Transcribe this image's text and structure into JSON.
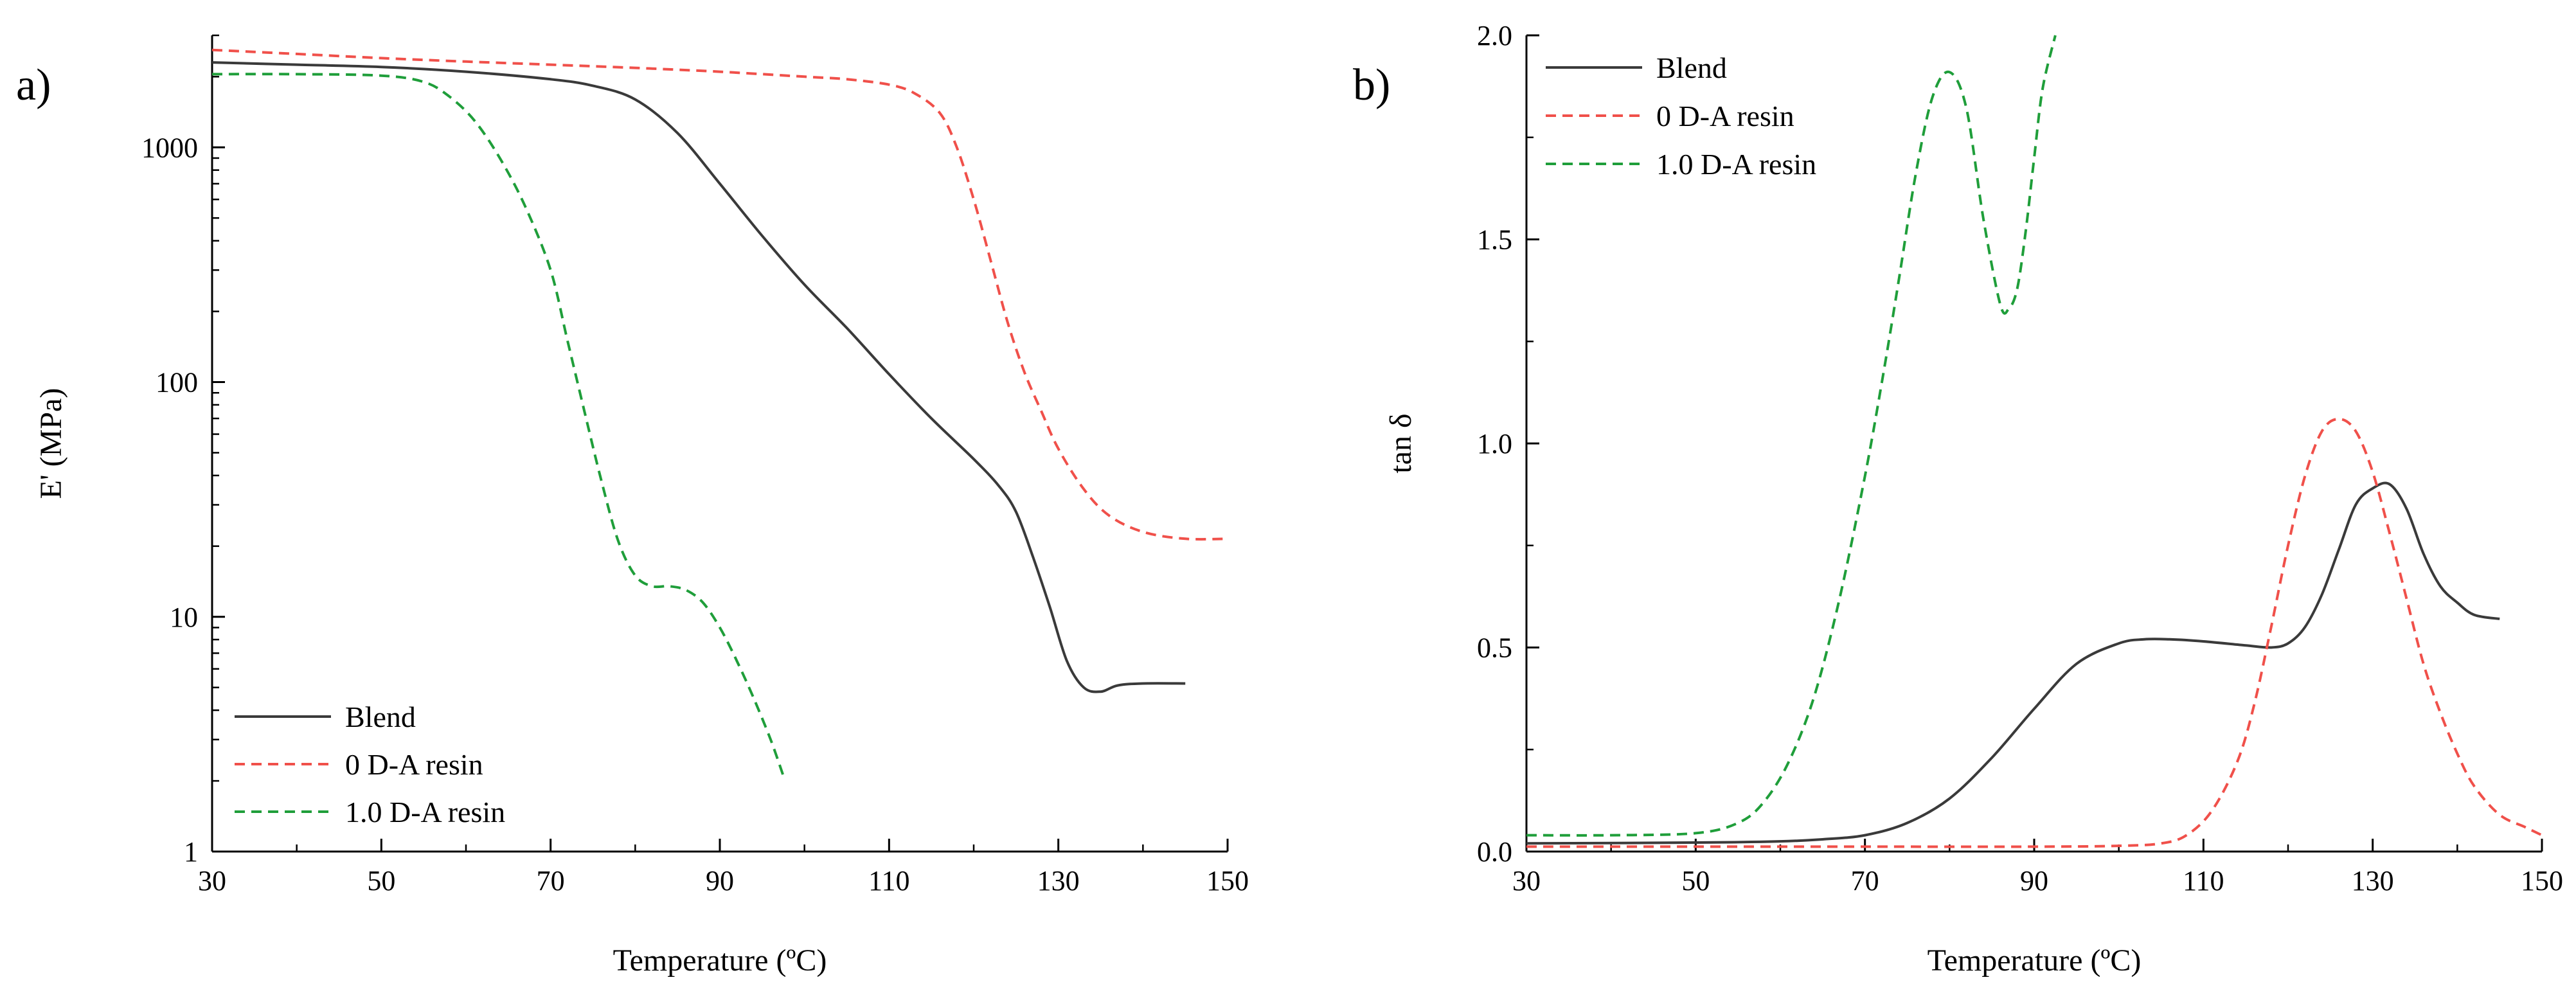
{
  "figure": {
    "colors": {
      "blend": "#3a3a3a",
      "resin0": "#f0504a",
      "resin1": "#1f9e3a"
    }
  },
  "chart_data": [
    {
      "type": "line",
      "panel_label": "a)",
      "xlabel": "Temperature (ºC)",
      "ylabel": "E' (MPa)",
      "yscale": "log",
      "xlim": [
        30,
        150
      ],
      "ylim": [
        1,
        3000
      ],
      "xticks": [
        30,
        50,
        70,
        90,
        110,
        130,
        150
      ],
      "xtick_labels": [
        "30",
        "50",
        "70",
        "90",
        "110",
        "130",
        "150"
      ],
      "yticks": [
        1,
        10,
        100,
        1000
      ],
      "ytick_labels": [
        "1",
        "10",
        "100",
        "1000"
      ],
      "legend_position": "bottom-left",
      "series": [
        {
          "name": "Blend",
          "style": "solid",
          "color": "#3a3a3a",
          "x": [
            30,
            40,
            50,
            60,
            70,
            75,
            80,
            85,
            90,
            95,
            100,
            105,
            110,
            115,
            120,
            123,
            125,
            127,
            129,
            131,
            133,
            135,
            137,
            140,
            145
          ],
          "y": [
            2300,
            2250,
            2200,
            2100,
            1950,
            1830,
            1600,
            1150,
            700,
            420,
            260,
            170,
            108,
            70,
            47,
            36,
            28,
            18,
            11,
            6.5,
            5.0,
            4.8,
            5.1,
            5.2,
            5.2
          ]
        },
        {
          "name": "0 D-A resin",
          "style": "dashed",
          "color": "#f0504a",
          "x": [
            30,
            40,
            50,
            60,
            70,
            80,
            90,
            100,
            105,
            110,
            113,
            116,
            118,
            120,
            122,
            124,
            126,
            128,
            130,
            133,
            136,
            140,
            145,
            150
          ],
          "y": [
            2600,
            2500,
            2400,
            2320,
            2250,
            2180,
            2100,
            2000,
            1950,
            1850,
            1700,
            1400,
            1000,
            600,
            330,
            180,
            110,
            75,
            52,
            35,
            27,
            23,
            21.5,
            21.5
          ]
        },
        {
          "name": "1.0 D-A resin",
          "style": "dashed",
          "color": "#1f9e3a",
          "x": [
            30,
            40,
            50,
            55,
            58,
            61,
            64,
            67,
            70,
            72,
            74,
            76,
            78,
            80,
            82,
            84,
            86,
            88,
            90,
            92,
            94,
            96,
            97.5
          ],
          "y": [
            2050,
            2050,
            2020,
            1900,
            1650,
            1300,
            900,
            560,
            300,
            150,
            75,
            38,
            21,
            15,
            13.5,
            13.5,
            13,
            11.5,
            9.0,
            6.5,
            4.5,
            3.0,
            2.1
          ]
        }
      ]
    },
    {
      "type": "line",
      "panel_label": "b)",
      "xlabel": "Temperature (ºC)",
      "ylabel": "tan δ",
      "yscale": "linear",
      "xlim": [
        30,
        150
      ],
      "ylim": [
        0,
        2.0
      ],
      "xticks": [
        30,
        50,
        70,
        90,
        110,
        130,
        150
      ],
      "xtick_labels": [
        "30",
        "50",
        "70",
        "90",
        "110",
        "130",
        "150"
      ],
      "yticks": [
        0,
        0.5,
        1.0,
        1.5,
        2.0
      ],
      "ytick_labels": [
        "0.0",
        "0.5",
        "1.0",
        "1.5",
        "2.0"
      ],
      "legend_position": "top-left",
      "series": [
        {
          "name": "Blend",
          "style": "solid",
          "color": "#3a3a3a",
          "x": [
            30,
            50,
            60,
            65,
            70,
            75,
            80,
            85,
            90,
            95,
            100,
            103,
            106,
            110,
            115,
            118,
            120,
            122,
            124,
            126,
            128,
            130,
            132,
            134,
            136,
            138,
            140,
            142,
            145
          ],
          "y": [
            0.02,
            0.022,
            0.025,
            0.03,
            0.04,
            0.07,
            0.13,
            0.23,
            0.35,
            0.46,
            0.51,
            0.52,
            0.52,
            0.515,
            0.505,
            0.5,
            0.51,
            0.55,
            0.63,
            0.74,
            0.85,
            0.89,
            0.9,
            0.84,
            0.73,
            0.65,
            0.61,
            0.58,
            0.57
          ]
        },
        {
          "name": "0 D-A resin",
          "style": "dashed",
          "color": "#f0504a",
          "x": [
            30,
            50,
            70,
            90,
            100,
            105,
            108,
            111,
            114,
            116,
            118,
            120,
            122,
            124,
            126,
            128,
            130,
            132,
            134,
            136,
            138,
            140,
            142,
            145,
            148,
            150
          ],
          "y": [
            0.012,
            0.012,
            0.012,
            0.012,
            0.014,
            0.02,
            0.04,
            0.1,
            0.22,
            0.36,
            0.55,
            0.75,
            0.92,
            1.03,
            1.06,
            1.03,
            0.93,
            0.78,
            0.62,
            0.46,
            0.34,
            0.24,
            0.16,
            0.09,
            0.06,
            0.04
          ]
        },
        {
          "name": "1.0 D-A resin",
          "style": "dashed",
          "color": "#1f9e3a",
          "x": [
            30,
            40,
            50,
            55,
            58,
            61,
            64,
            67,
            70,
            72,
            74,
            76,
            78,
            80,
            82,
            84,
            86,
            87,
            88,
            89,
            90,
            91,
            92.5
          ],
          "y": [
            0.04,
            0.04,
            0.045,
            0.07,
            0.12,
            0.22,
            0.38,
            0.62,
            0.92,
            1.15,
            1.4,
            1.66,
            1.85,
            1.91,
            1.82,
            1.55,
            1.34,
            1.33,
            1.38,
            1.52,
            1.7,
            1.87,
            2.0
          ]
        }
      ]
    }
  ]
}
